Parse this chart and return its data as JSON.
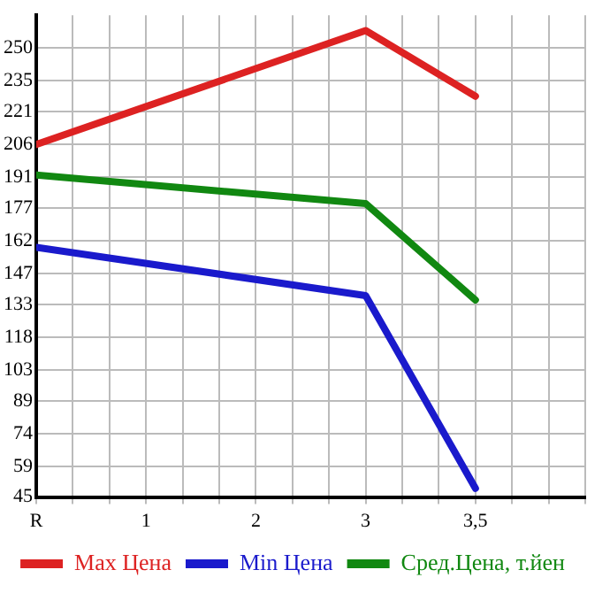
{
  "chart_data": {
    "type": "line",
    "categories": [
      "R",
      "1",
      "2",
      "3",
      "3,5",
      null
    ],
    "ylim": [
      45,
      265
    ],
    "yticks": [
      45,
      59,
      74,
      89,
      103,
      118,
      133,
      147,
      162,
      177,
      191,
      206,
      221,
      235,
      250
    ],
    "grid": true,
    "legend": "bottom",
    "marker": "none",
    "line_style": "solid",
    "series": [
      {
        "name": "Max Цена",
        "color": "#dd2222",
        "values": [
          206,
          null,
          null,
          258,
          228,
          null
        ]
      },
      {
        "name": "Min Цена",
        "color": "#1a1acc",
        "values": [
          159,
          null,
          null,
          137,
          49,
          null
        ]
      },
      {
        "name": "Сред.Цена, т.йен",
        "color": "#118811",
        "values": [
          192,
          null,
          null,
          179,
          135,
          null
        ]
      }
    ]
  }
}
